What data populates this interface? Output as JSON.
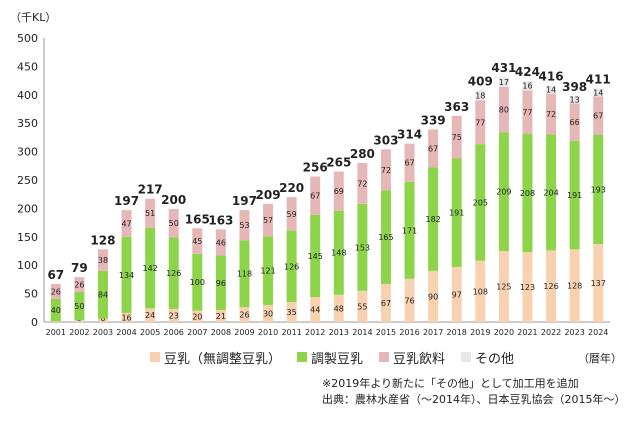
{
  "chart_data": {
    "type": "bar",
    "stacked": true,
    "y_unit_label": "（千KL）",
    "x_unit_label": "（暦年）",
    "ylim": [
      0,
      500
    ],
    "yticks": [
      "0",
      "50",
      "100",
      "150",
      "200",
      "250",
      "300",
      "350",
      "400",
      "450",
      "500"
    ],
    "categories": [
      "2001",
      "2002",
      "2003",
      "2004",
      "2005",
      "2006",
      "2007",
      "2008",
      "2009",
      "2010",
      "2011",
      "2012",
      "2013",
      "2014",
      "2015",
      "2016",
      "2017",
      "2018",
      "2019",
      "2020",
      "2021",
      "2022",
      "2023",
      "2024"
    ],
    "series": [
      {
        "name": "豆乳（無調整豆乳）",
        "color": "#f8d2b0",
        "values": [
          1,
          3,
          6,
          16,
          24,
          23,
          20,
          21,
          26,
          30,
          35,
          44,
          48,
          55,
          67,
          76,
          90,
          97,
          108,
          125,
          123,
          126,
          128,
          137
        ]
      },
      {
        "name": "調製豆乳",
        "color": "#8dd44a",
        "values": [
          40,
          50,
          84,
          134,
          142,
          126,
          100,
          96,
          118,
          121,
          126,
          145,
          148,
          153,
          165,
          171,
          182,
          191,
          205,
          209,
          208,
          204,
          191,
          193
        ]
      },
      {
        "name": "豆乳飲料",
        "color": "#e6b7b7",
        "values": [
          26,
          26,
          38,
          47,
          51,
          50,
          45,
          46,
          53,
          57,
          59,
          67,
          69,
          72,
          72,
          67,
          67,
          75,
          77,
          80,
          77,
          72,
          66,
          67
        ]
      },
      {
        "name": "その他",
        "color": "#e8e8e8",
        "values": [
          0,
          0,
          0,
          0,
          0,
          0,
          0,
          0,
          0,
          0,
          0,
          0,
          0,
          0,
          0,
          0,
          0,
          0,
          18,
          17,
          16,
          14,
          13,
          14
        ]
      }
    ],
    "totals": [
      "67",
      "79",
      "128",
      "197",
      "217",
      "200",
      "165",
      "163",
      "197",
      "209",
      "220",
      "256",
      "265",
      "280",
      "303",
      "314",
      "339",
      "363",
      "409",
      "431",
      "424",
      "416",
      "398",
      "411"
    ],
    "legend": [
      "豆乳（無調整豆乳）",
      "調製豆乳",
      "豆乳飲料",
      "その他"
    ]
  },
  "notes": {
    "line1": "※2019年より新たに「その他」として加工用を追加",
    "line2": "出典：農林水産省（～2014年）、日本豆乳協会（2015年～）"
  }
}
